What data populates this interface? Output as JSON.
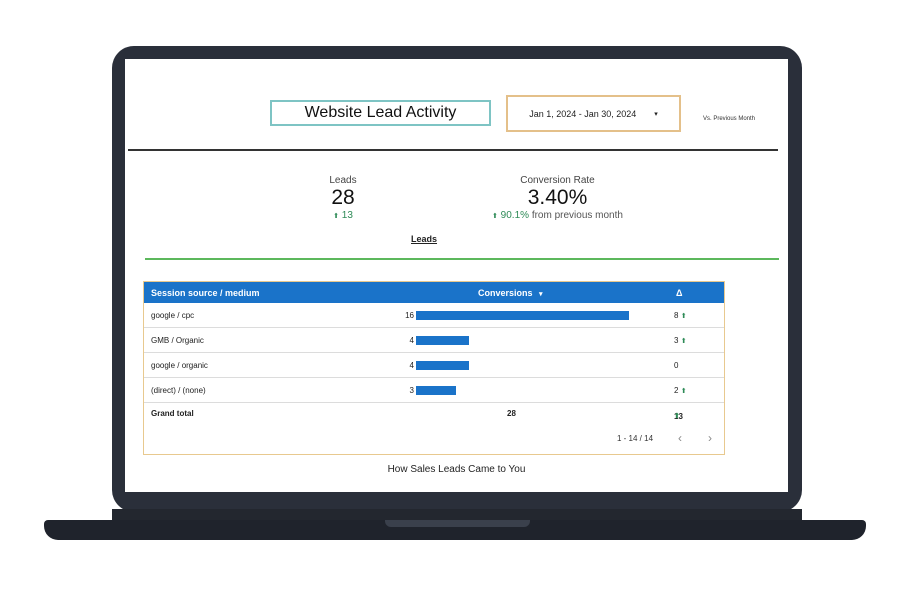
{
  "header": {
    "title": "Website Lead Activity",
    "date_range": "Jan 1, 2024 - Jan 30, 2024",
    "dropdown_glyph": "▾",
    "comparison": "Vs. Previous Month"
  },
  "kpis": {
    "leads": {
      "label": "Leads",
      "value": "28",
      "arrow": "⬆",
      "delta": "13"
    },
    "conversion_rate": {
      "label": "Conversion Rate",
      "value": "3.40%",
      "arrow": "⬆",
      "delta": "90.1%",
      "delta_suffix": "from previous month"
    }
  },
  "leads_link": "Leads",
  "table": {
    "headers": {
      "source": "Session source / medium",
      "conversions": "Conversions",
      "sort_glyph": "▾",
      "delta": "Δ"
    },
    "rows": [
      {
        "source": "google / cpc",
        "conversions": 16,
        "delta": "8",
        "arrow": "⬆"
      },
      {
        "source": "GMB / Organic",
        "conversions": 4,
        "delta": "3",
        "arrow": "⬆"
      },
      {
        "source": "google / organic",
        "conversions": 4,
        "delta": "0",
        "arrow": ""
      },
      {
        "source": "(direct) / (none)",
        "conversions": 3,
        "delta": "2",
        "arrow": "⬆"
      }
    ],
    "total": {
      "label": "Grand total",
      "conversions": "28",
      "delta": "13",
      "arrow": "⬆"
    },
    "pagination": {
      "range": "1 - 14 / 14",
      "prev": "‹",
      "next": "›"
    },
    "bar_color": "#1a73c9",
    "max_conversions": 16
  },
  "caption": "How Sales Leads Came to You"
}
